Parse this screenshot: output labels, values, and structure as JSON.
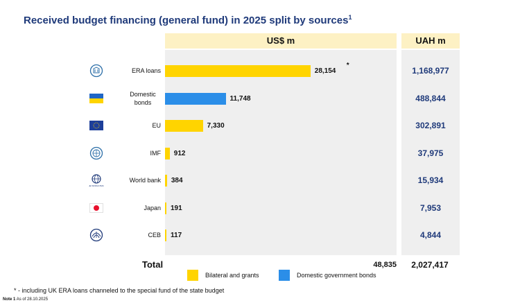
{
  "title": "Received budget financing (general fund) in 2025 split by sources",
  "title_sup": "1",
  "colors": {
    "bilateral": "#ffd400",
    "domestic": "#2b8ee8",
    "panel": "#efefef",
    "header": "#fdf1c4",
    "accent": "#1f3a7a"
  },
  "chart_data": {
    "type": "bar",
    "orientation": "horizontal",
    "title": "Received budget financing (general fund) in 2025 split by sources",
    "units": "US$ m",
    "secondary_units": "UAH m",
    "xlim": [
      0,
      31000
    ],
    "categories": [
      "ERA loans",
      "Domestic bonds",
      "EU",
      "IMF",
      "World bank",
      "Japan",
      "CEB"
    ],
    "values": [
      28154,
      11748,
      7330,
      912,
      384,
      191,
      117
    ],
    "value_labels": [
      "28,154",
      "11,748",
      "7,330",
      "912",
      "384",
      "191",
      "117"
    ],
    "uah_values": [
      1168977,
      488844,
      302891,
      37975,
      15934,
      7953,
      4844
    ],
    "uah_labels": [
      "1,168,977",
      "488,844",
      "302,891",
      "37,975",
      "15,934",
      "7,953",
      "4,844"
    ],
    "series_type": [
      "bilateral",
      "domestic",
      "bilateral",
      "bilateral",
      "bilateral",
      "bilateral",
      "bilateral"
    ],
    "annotations": [
      "*",
      "",
      "",
      "",
      "",
      "",
      ""
    ],
    "total": {
      "label": "Total",
      "usd": "48,835",
      "uah": "2,027,417"
    },
    "legend": [
      {
        "key": "bilateral",
        "label": "Bilateral and grants",
        "color": "#ffd400"
      },
      {
        "key": "domestic",
        "label": "Domestic government bonds",
        "color": "#2b8ee8"
      }
    ]
  },
  "rows": [
    {
      "label": "ERA loans",
      "icon": "era-icon"
    },
    {
      "label": "Domestic bonds",
      "icon": "ukraine-flag-icon"
    },
    {
      "label": "EU",
      "icon": "eu-flag-icon"
    },
    {
      "label": "IMF",
      "icon": "imf-icon"
    },
    {
      "label": "World bank",
      "icon": "world-bank-icon"
    },
    {
      "label": "Japan",
      "icon": "japan-flag-icon"
    },
    {
      "label": "CEB",
      "icon": "ceb-icon"
    }
  ],
  "headers": {
    "usd": "US$ m",
    "uah": "UAH m"
  },
  "world_bank_mark": "THE WORLD BANK",
  "footnote": "* - including UK ERA loans channeled to the special fund of the state budget",
  "note1": {
    "label": "Note 1",
    "text": "As of 28.10.2025"
  }
}
